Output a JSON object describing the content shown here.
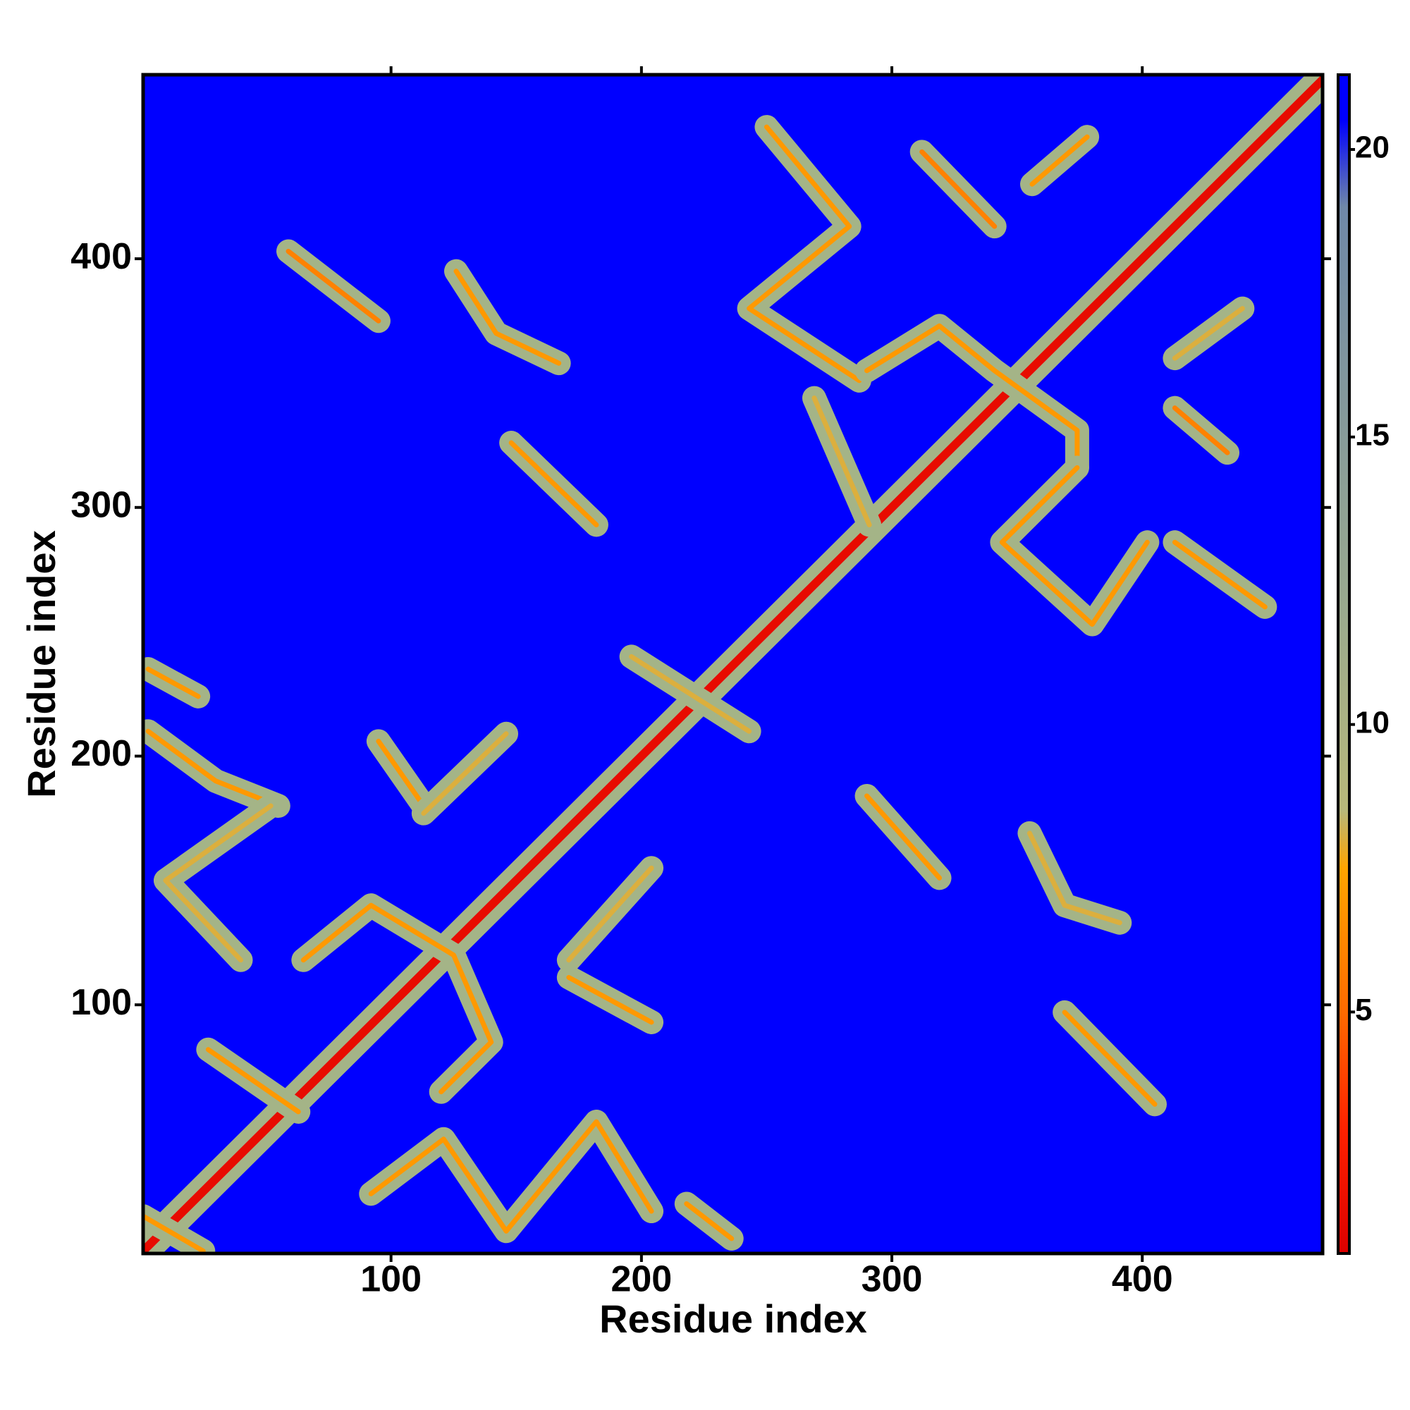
{
  "chart_data": {
    "type": "heatmap",
    "x_label": "Residue index",
    "y_label": "Residue index",
    "xlim": [
      1,
      472
    ],
    "ylim": [
      0,
      474
    ],
    "xticks": [
      100,
      200,
      300,
      400
    ],
    "yticks": [
      100,
      200,
      300,
      400
    ],
    "clim": [
      0.8,
      21.3
    ],
    "cticks": [
      5,
      10,
      15,
      20
    ],
    "background_color": "#0000ff",
    "colormap": [
      {
        "value": 0.8,
        "color": "#dd0000"
      },
      {
        "value": 3,
        "color": "#ff2200"
      },
      {
        "value": 5,
        "color": "#ff6a00"
      },
      {
        "value": 7.5,
        "color": "#ffa500"
      },
      {
        "value": 8.5,
        "color": "#b8b87a"
      },
      {
        "value": 12,
        "color": "#9aaa8e"
      },
      {
        "value": 19,
        "color": "#6f88a8"
      },
      {
        "value": 20.5,
        "color": "#0000ff"
      }
    ],
    "contacts": [
      {
        "x": [
          1,
          473
        ],
        "y": [
          1,
          473
        ],
        "value": 1.5
      },
      {
        "x": [
          59,
          95
        ],
        "y": [
          403,
          375
        ],
        "value": 6
      },
      {
        "x": [
          126,
          142,
          167
        ],
        "y": [
          395,
          370,
          358
        ],
        "value": 7
      },
      {
        "x": [
          148,
          182
        ],
        "y": [
          326,
          293
        ],
        "value": 7
      },
      {
        "x": [
          250,
          283,
          243,
          287
        ],
        "y": [
          453,
          413,
          380,
          351
        ],
        "value": 7
      },
      {
        "x": [
          312,
          341
        ],
        "y": [
          443,
          413
        ],
        "value": 6
      },
      {
        "x": [
          356,
          378
        ],
        "y": [
          430,
          449
        ],
        "value": 7
      },
      {
        "x": [
          290,
          319,
          341,
          374,
          374
        ],
        "y": [
          355,
          373,
          355,
          331,
          316
        ],
        "value": 7
      },
      {
        "x": [
          374,
          344,
          380,
          402
        ],
        "y": [
          316,
          286,
          253,
          286
        ],
        "value": 7
      },
      {
        "x": [
          413,
          449
        ],
        "y": [
          286,
          260
        ],
        "value": 7
      },
      {
        "x": [
          413,
          434
        ],
        "y": [
          340,
          322
        ],
        "value": 6
      },
      {
        "x": [
          413,
          440
        ],
        "y": [
          360,
          380
        ],
        "value": 8
      },
      {
        "x": [
          269,
          291
        ],
        "y": [
          344,
          293
        ],
        "value": 8
      },
      {
        "x": [
          196,
          243
        ],
        "y": [
          240,
          210
        ],
        "value": 8
      },
      {
        "x": [
          290,
          319
        ],
        "y": [
          184,
          151
        ],
        "value": 7
      },
      {
        "x": [
          355,
          369,
          391
        ],
        "y": [
          169,
          140,
          133
        ],
        "value": 8
      },
      {
        "x": [
          369,
          405
        ],
        "y": [
          97,
          60
        ],
        "value": 7
      },
      {
        "x": [
          3,
          23
        ],
        "y": [
          235,
          224
        ],
        "value": 7
      },
      {
        "x": [
          3,
          30,
          55
        ],
        "y": [
          210,
          190,
          180
        ],
        "value": 7
      },
      {
        "x": [
          52,
          10,
          40
        ],
        "y": [
          180,
          150,
          118
        ],
        "value": 8
      },
      {
        "x": [
          95,
          113
        ],
        "y": [
          206,
          180
        ],
        "value": 7
      },
      {
        "x": [
          113,
          146
        ],
        "y": [
          177,
          209
        ],
        "value": 8
      },
      {
        "x": [
          65,
          92,
          125,
          140,
          120
        ],
        "y": [
          118,
          140,
          120,
          85,
          65
        ],
        "value": 7
      },
      {
        "x": [
          171,
          204
        ],
        "y": [
          111,
          93
        ],
        "value": 7
      },
      {
        "x": [
          171,
          204
        ],
        "y": [
          118,
          155
        ],
        "value": 8
      },
      {
        "x": [
          92,
          121,
          146,
          182,
          204
        ],
        "y": [
          24,
          46,
          9,
          53,
          17
        ],
        "value": 7
      },
      {
        "x": [
          218,
          236
        ],
        "y": [
          20,
          6
        ],
        "value": 7
      },
      {
        "x": [
          27,
          63
        ],
        "y": [
          82,
          57
        ],
        "value": 7
      },
      {
        "x": [
          1,
          25
        ],
        "y": [
          15,
          1
        ],
        "value": 7
      }
    ]
  }
}
